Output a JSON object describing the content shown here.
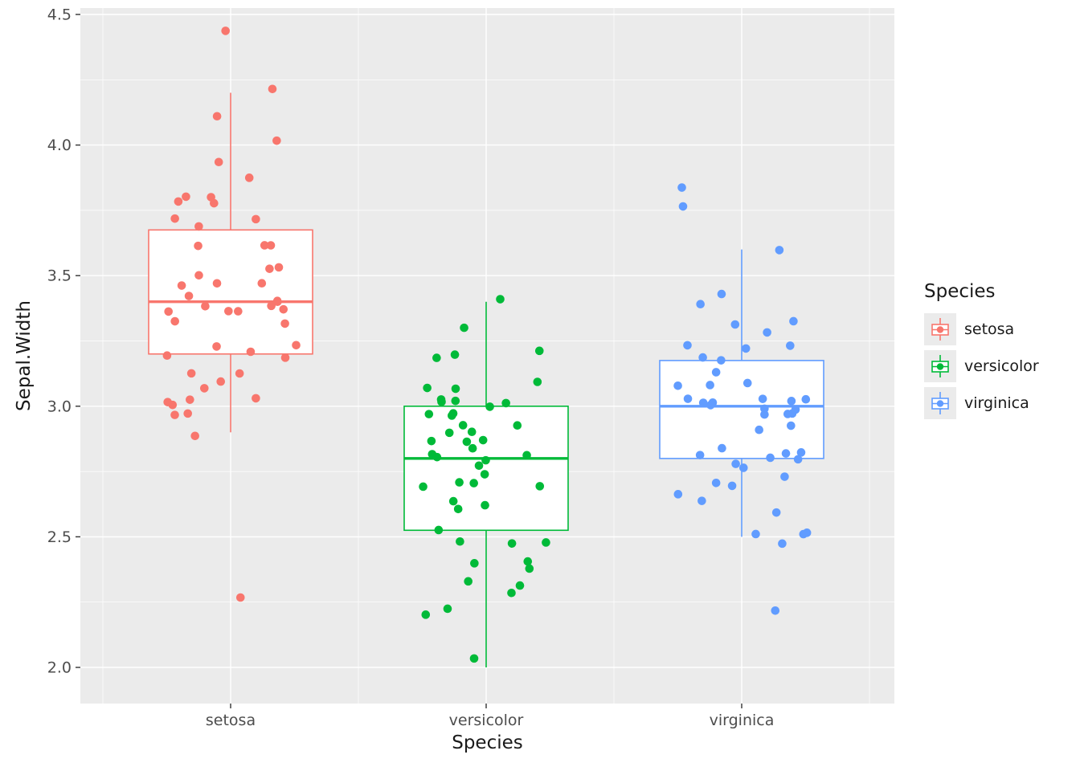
{
  "chart_data": {
    "type": "boxplot",
    "xlabel": "Species",
    "ylabel": "Sepal.Width",
    "categories": [
      "setosa",
      "versicolor",
      "virginica"
    ],
    "yticks": [
      2.0,
      2.5,
      3.0,
      3.5,
      4.0,
      4.5
    ],
    "ytick_labels": [
      "2.0",
      "2.5",
      "3.0",
      "3.5",
      "4.0",
      "4.5"
    ],
    "ylim": [
      1.86,
      4.53
    ],
    "panel_background": "#EBEBEB",
    "grid_color": "#FFFFFF",
    "box_fill": "#FFFFFF",
    "legend": {
      "title": "Species",
      "position": "right",
      "key_background": "#EBEBEB",
      "entries": [
        {
          "label": "setosa",
          "color": "#F8766D"
        },
        {
          "label": "versicolor",
          "color": "#00BA38"
        },
        {
          "label": "virginica",
          "color": "#619CFF"
        }
      ]
    },
    "series": [
      {
        "name": "setosa",
        "color": "#F8766D",
        "box": {
          "whisker_low": 2.9,
          "q1": 3.2,
          "median": 3.4,
          "q3": 3.675,
          "whisker_high": 4.2
        },
        "values": [
          3.5,
          3.0,
          3.2,
          3.1,
          3.6,
          3.9,
          3.4,
          3.4,
          2.9,
          3.1,
          3.7,
          3.4,
          3.0,
          3.0,
          4.0,
          4.4,
          3.9,
          3.5,
          3.8,
          3.8,
          3.4,
          3.7,
          3.6,
          3.3,
          3.4,
          3.0,
          3.4,
          3.5,
          3.4,
          3.2,
          3.1,
          3.4,
          4.1,
          4.2,
          3.1,
          3.2,
          3.5,
          3.6,
          3.0,
          3.4,
          3.5,
          2.3,
          3.2,
          3.5,
          3.8,
          3.0,
          3.8,
          3.2,
          3.7,
          3.3
        ]
      },
      {
        "name": "versicolor",
        "color": "#00BA38",
        "box": {
          "whisker_low": 2.0,
          "q1": 2.525,
          "median": 2.8,
          "q3": 3.0,
          "whisker_high": 3.4
        },
        "values": [
          3.2,
          3.2,
          3.1,
          2.3,
          2.8,
          2.8,
          3.3,
          2.4,
          2.9,
          2.7,
          2.0,
          3.0,
          2.2,
          2.9,
          2.9,
          3.1,
          3.0,
          2.7,
          2.2,
          2.5,
          3.2,
          2.8,
          2.5,
          2.8,
          2.9,
          3.0,
          2.8,
          3.0,
          2.9,
          2.6,
          2.4,
          2.4,
          2.7,
          2.7,
          3.0,
          3.4,
          3.1,
          2.3,
          3.0,
          2.5,
          2.6,
          3.0,
          2.6,
          2.3,
          2.7,
          3.0,
          2.9,
          2.9,
          2.5,
          2.8
        ]
      },
      {
        "name": "virginica",
        "color": "#619CFF",
        "box": {
          "whisker_low": 2.5,
          "q1": 2.8,
          "median": 3.0,
          "q3": 3.175,
          "whisker_high": 3.6
        },
        "values": [
          3.3,
          2.7,
          3.0,
          2.9,
          3.0,
          3.0,
          2.5,
          2.9,
          2.5,
          3.6,
          3.2,
          2.7,
          3.0,
          2.5,
          2.8,
          3.2,
          3.0,
          3.8,
          2.6,
          2.2,
          3.2,
          2.8,
          2.8,
          2.7,
          3.3,
          3.2,
          2.8,
          3.0,
          2.8,
          3.0,
          2.8,
          3.8,
          2.8,
          2.8,
          2.6,
          3.0,
          3.4,
          3.1,
          3.0,
          3.1,
          3.1,
          3.1,
          2.7,
          3.2,
          3.3,
          3.0,
          2.5,
          3.0,
          3.4,
          3.0
        ]
      }
    ]
  }
}
